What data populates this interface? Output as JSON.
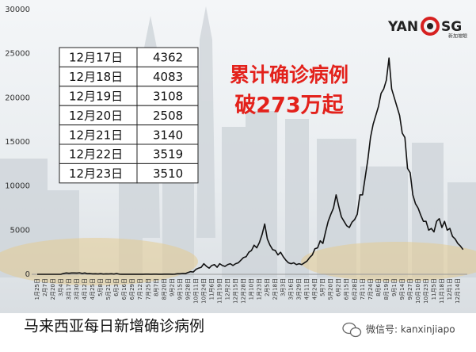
{
  "chart_data": {
    "type": "line",
    "categories": [
      "1月25日",
      null,
      null,
      "2月7日",
      null,
      null,
      "2月20日",
      null,
      null,
      "3月4日",
      null,
      null,
      "3月17日",
      null,
      null,
      "3月30日",
      null,
      null,
      "4月12日",
      null,
      null,
      "4月25日",
      null,
      null,
      "5月8日",
      null,
      null,
      "5月21日",
      null,
      null,
      "6月3日",
      null,
      null,
      "6月16日",
      null,
      null,
      "6月29日",
      null,
      null,
      "7月12日",
      null,
      null,
      "7月25日",
      null,
      null,
      "8月7日",
      null,
      null,
      "8月20日",
      null,
      null,
      "9月2日",
      null,
      null,
      "9月15日",
      null,
      null,
      "9月28日",
      null,
      null,
      "10月11日",
      null,
      null,
      "10月24日",
      null,
      null,
      "11月6日",
      null,
      null,
      "11月19日",
      null,
      null,
      "12月2日",
      null,
      null,
      "12月15日",
      null,
      null,
      "12月28日",
      null,
      null,
      "1月10日",
      null,
      null,
      "1月23日",
      null,
      null,
      "2月5日",
      null,
      null,
      "2月18日",
      null,
      null,
      "3月3日",
      null,
      null,
      "3月16日",
      null,
      null,
      "3月29日",
      null,
      null,
      "4月11日",
      null,
      null,
      "4月24日",
      null,
      null,
      "5月7日",
      null,
      null,
      "5月20日",
      null,
      null,
      "6月2日",
      null,
      null,
      "6月15日",
      null,
      null,
      "6月28日",
      null,
      null,
      "7月11日",
      null,
      null,
      "7月24日",
      null,
      null,
      "8月6日",
      null,
      null,
      "8月19日",
      null,
      null,
      "9月1日",
      null,
      null,
      "9月14日",
      null,
      null,
      "9月27日",
      null,
      null,
      "10月10日",
      null,
      null,
      "10月23日",
      null,
      null,
      "11月5日",
      null,
      null,
      "11月18日",
      null,
      null,
      "12月1日",
      null,
      null,
      "12月14日",
      null,
      null
    ],
    "values": [
      0,
      0,
      0,
      0,
      0,
      0,
      0,
      0,
      0,
      10,
      100,
      150,
      120,
      150,
      150,
      140,
      170,
      100,
      150,
      70,
      80,
      50,
      60,
      40,
      70,
      30,
      50,
      40,
      60,
      30,
      90,
      20,
      10,
      10,
      10,
      5,
      5,
      5,
      10,
      10,
      10,
      15,
      20,
      10,
      15,
      20,
      10,
      10,
      15,
      20,
      15,
      10,
      20,
      60,
      60,
      100,
      80,
      200,
      300,
      260,
      560,
      700,
      800,
      1200,
      900,
      700,
      1000,
      1100,
      800,
      1200,
      1000,
      900,
      1100,
      1200,
      1000,
      1200,
      1300,
      1600,
      1900,
      2000,
      2500,
      2700,
      3300,
      3000,
      3600,
      4500,
      5700,
      4000,
      3300,
      2800,
      2700,
      2200,
      2500,
      2000,
      1600,
      1300,
      1200,
      1300,
      1100,
      1200,
      1100,
      1300,
      1500,
      1900,
      2200,
      2900,
      3000,
      3800,
      3500,
      4800,
      6000,
      6800,
      7500,
      9000,
      7700,
      6500,
      6000,
      5500,
      5300,
      5900,
      6200,
      6800,
      9000,
      9000,
      11000,
      13000,
      15500,
      17000,
      18000,
      19000,
      20500,
      21000,
      22000,
      24500,
      21000,
      20000,
      19000,
      18000,
      16000,
      15500,
      12000,
      11500,
      9000,
      8000,
      7500,
      6700,
      6000,
      6000,
      5000,
      5200,
      4800,
      6000,
      6300,
      5300,
      6000,
      5000,
      5200,
      4300,
      4000,
      3500,
      3200,
      2800
    ],
    "color": "#111111",
    "ylim": [
      0,
      30000
    ],
    "yticks": [
      0,
      5000,
      10000,
      15000,
      20000,
      25000,
      30000
    ],
    "caption": "马来西亚每日新增确诊病例",
    "headline": [
      "累计确诊病例",
      "破273万起"
    ],
    "table": {
      "rows": [
        [
          "12月17日",
          "4362"
        ],
        [
          "12月18日",
          "4083"
        ],
        [
          "12月19日",
          "3108"
        ],
        [
          "12月20日",
          "2508"
        ],
        [
          "12月21日",
          "3140"
        ],
        [
          "12月22日",
          "3519"
        ],
        [
          "12月23日",
          "3510"
        ]
      ]
    },
    "logo": {
      "left": "YAN",
      "right": "SG",
      "sub": "新加坡眼"
    },
    "wechat": "微信号: kanxinjiapo"
  }
}
